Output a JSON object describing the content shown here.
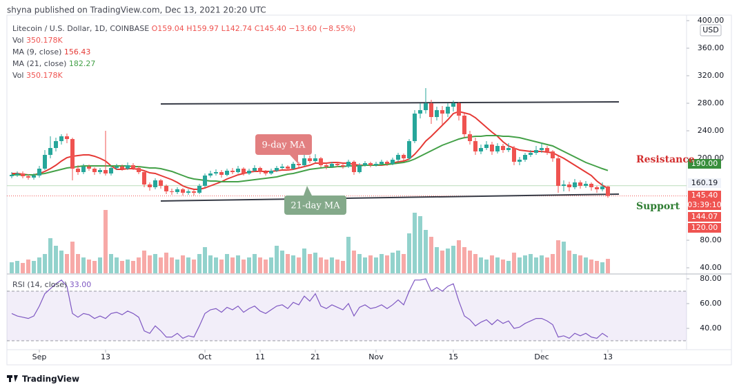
{
  "header": "shyna published on TradingView.com, Dec 13, 2021 20:20 UTC",
  "footer": "TradingView",
  "chart_data": {
    "type": "candlestick",
    "symbol": "Litecoin / U.S. Dollar, 1D, COINBASE",
    "ohlc_legend": [
      "O159.04",
      "H159.97",
      "L142.74",
      "C145.40",
      "−13.60 (−8.55%)"
    ],
    "vol_name": "Vol",
    "vol_value": "350.178K",
    "currency": "USD",
    "up_color": "#26a69a",
    "down_color": "#ef5350",
    "ylim": [
      32,
      408
    ],
    "yticks": [
      {
        "value": 400,
        "label": "400.00"
      },
      {
        "value": 360,
        "label": "360.00"
      },
      {
        "value": 320,
        "label": "320.00"
      },
      {
        "value": 280,
        "label": "280.00"
      },
      {
        "value": 240,
        "label": "240.00"
      },
      {
        "value": 200,
        "label": "200.00"
      }
    ],
    "volume_ylim": [
      32,
      120
    ],
    "volume_yticks": [
      {
        "value": 80,
        "label": "80.00"
      },
      {
        "value": 40,
        "label": "40.00"
      }
    ],
    "categories": [
      null,
      null,
      null,
      null,
      null,
      "Sep",
      null,
      null,
      null,
      null,
      null,
      null,
      null,
      null,
      null,
      null,
      null,
      "13",
      null,
      null,
      null,
      null,
      null,
      null,
      null,
      null,
      null,
      null,
      null,
      null,
      null,
      null,
      null,
      null,
      null,
      "Oct",
      null,
      null,
      null,
      null,
      null,
      null,
      null,
      null,
      null,
      "11",
      null,
      null,
      null,
      null,
      null,
      null,
      null,
      null,
      null,
      "21",
      null,
      null,
      null,
      null,
      null,
      null,
      null,
      null,
      null,
      null,
      "Nov",
      null,
      null,
      null,
      null,
      null,
      null,
      null,
      null,
      null,
      null,
      null,
      null,
      null,
      "15",
      null,
      null,
      null,
      null,
      null,
      null,
      null,
      null,
      null,
      null,
      null,
      null,
      null,
      null,
      null,
      "Dec",
      null,
      null,
      null,
      null,
      null,
      null,
      null,
      null,
      null,
      null,
      null,
      "13"
    ],
    "candles": [
      [
        174,
        180,
        171,
        176
      ],
      [
        176,
        181,
        173,
        178
      ],
      [
        178,
        181,
        171,
        174
      ],
      [
        174,
        177,
        169,
        172
      ],
      [
        172,
        178,
        169,
        175
      ],
      [
        175,
        189,
        172,
        185
      ],
      [
        185,
        212,
        183,
        205
      ],
      [
        205,
        232,
        200,
        215
      ],
      [
        215,
        230,
        210,
        225
      ],
      [
        225,
        235,
        220,
        232
      ],
      [
        232,
        236,
        222,
        228
      ],
      [
        228,
        230,
        168,
        185
      ],
      [
        185,
        190,
        176,
        180
      ],
      [
        180,
        192,
        177,
        188
      ],
      [
        188,
        191,
        182,
        185
      ],
      [
        185,
        187,
        176,
        180
      ],
      [
        180,
        186,
        177,
        183
      ],
      [
        183,
        240,
        175,
        178
      ],
      [
        178,
        189,
        175,
        186
      ],
      [
        186,
        192,
        183,
        188
      ],
      [
        188,
        191,
        182,
        185
      ],
      [
        185,
        194,
        183,
        190
      ],
      [
        190,
        193,
        183,
        186
      ],
      [
        186,
        189,
        177,
        180
      ],
      [
        180,
        182,
        158,
        162
      ],
      [
        162,
        165,
        153,
        158
      ],
      [
        158,
        171,
        155,
        168
      ],
      [
        168,
        170,
        156,
        160
      ],
      [
        160,
        162,
        148,
        152
      ],
      [
        152,
        156,
        147,
        151
      ],
      [
        151,
        158,
        148,
        155
      ],
      [
        155,
        157,
        146,
        150
      ],
      [
        150,
        155,
        147,
        152
      ],
      [
        152,
        154,
        146,
        150
      ],
      [
        150,
        163,
        148,
        160
      ],
      [
        160,
        178,
        158,
        175
      ],
      [
        175,
        182,
        172,
        178
      ],
      [
        178,
        184,
        175,
        180
      ],
      [
        180,
        183,
        172,
        176
      ],
      [
        176,
        185,
        174,
        182
      ],
      [
        182,
        186,
        177,
        180
      ],
      [
        180,
        189,
        178,
        185
      ],
      [
        185,
        187,
        175,
        178
      ],
      [
        178,
        185,
        176,
        182
      ],
      [
        182,
        190,
        180,
        186
      ],
      [
        186,
        188,
        177,
        180
      ],
      [
        180,
        183,
        175,
        178
      ],
      [
        178,
        185,
        176,
        182
      ],
      [
        182,
        189,
        180,
        186
      ],
      [
        186,
        192,
        184,
        188
      ],
      [
        188,
        190,
        182,
        185
      ],
      [
        185,
        195,
        183,
        192
      ],
      [
        192,
        195,
        187,
        190
      ],
      [
        190,
        212,
        188,
        200
      ],
      [
        200,
        204,
        193,
        196
      ],
      [
        196,
        206,
        194,
        200
      ],
      [
        200,
        202,
        187,
        190
      ],
      [
        190,
        193,
        184,
        188
      ],
      [
        188,
        195,
        186,
        192
      ],
      [
        192,
        194,
        187,
        190
      ],
      [
        190,
        193,
        185,
        188
      ],
      [
        188,
        198,
        186,
        195
      ],
      [
        195,
        197,
        176,
        180
      ],
      [
        180,
        193,
        178,
        190
      ],
      [
        190,
        196,
        188,
        193
      ],
      [
        193,
        195,
        187,
        190
      ],
      [
        190,
        195,
        188,
        192
      ],
      [
        192,
        198,
        190,
        195
      ],
      [
        195,
        197,
        189,
        192
      ],
      [
        192,
        201,
        190,
        198
      ],
      [
        198,
        208,
        195,
        205
      ],
      [
        205,
        207,
        197,
        200
      ],
      [
        200,
        228,
        198,
        225
      ],
      [
        225,
        270,
        222,
        265
      ],
      [
        265,
        280,
        258,
        270
      ],
      [
        270,
        302,
        265,
        280
      ],
      [
        280,
        285,
        250,
        260
      ],
      [
        260,
        275,
        255,
        270
      ],
      [
        270,
        276,
        248,
        265
      ],
      [
        265,
        280,
        260,
        275
      ],
      [
        275,
        284,
        268,
        280
      ],
      [
        280,
        282,
        255,
        262
      ],
      [
        262,
        265,
        230,
        235
      ],
      [
        235,
        240,
        220,
        225
      ],
      [
        225,
        230,
        205,
        210
      ],
      [
        210,
        220,
        206,
        215
      ],
      [
        215,
        225,
        212,
        220
      ],
      [
        220,
        224,
        205,
        210
      ],
      [
        210,
        222,
        207,
        218
      ],
      [
        218,
        221,
        208,
        212
      ],
      [
        212,
        222,
        209,
        215
      ],
      [
        215,
        218,
        190,
        195
      ],
      [
        195,
        202,
        190,
        198
      ],
      [
        198,
        208,
        195,
        205
      ],
      [
        205,
        212,
        202,
        208
      ],
      [
        208,
        218,
        205,
        212
      ],
      [
        212,
        222,
        208,
        215
      ],
      [
        215,
        218,
        205,
        210
      ],
      [
        210,
        212,
        195,
        200
      ],
      [
        200,
        203,
        150,
        160
      ],
      [
        160,
        168,
        152,
        162
      ],
      [
        162,
        166,
        152,
        158
      ],
      [
        158,
        170,
        155,
        165
      ],
      [
        165,
        168,
        156,
        160
      ],
      [
        160,
        167,
        157,
        163
      ],
      [
        163,
        165,
        153,
        158
      ],
      [
        158,
        160,
        150,
        155
      ],
      [
        155,
        165,
        152,
        159.04
      ],
      [
        159.04,
        159.97,
        142.74,
        145.4
      ]
    ],
    "volume": [
      48,
      50,
      47,
      52,
      50,
      55,
      60,
      83,
      72,
      65,
      60,
      78,
      60,
      55,
      52,
      50,
      55,
      124,
      60,
      55,
      50,
      52,
      50,
      55,
      65,
      58,
      60,
      55,
      62,
      55,
      52,
      58,
      55,
      52,
      60,
      70,
      58,
      55,
      52,
      60,
      55,
      58,
      52,
      55,
      60,
      55,
      52,
      55,
      72,
      65,
      60,
      58,
      55,
      68,
      60,
      62,
      55,
      52,
      55,
      52,
      50,
      85,
      65,
      60,
      55,
      58,
      55,
      60,
      58,
      62,
      65,
      60,
      90,
      120,
      115,
      95,
      85,
      70,
      65,
      68,
      72,
      80,
      70,
      65,
      60,
      55,
      52,
      58,
      55,
      52,
      50,
      62,
      55,
      58,
      60,
      55,
      58,
      55,
      60,
      80,
      78,
      65,
      60,
      58,
      55,
      52,
      50,
      48,
      53
    ],
    "ma_lines": [
      {
        "name": "MA (9, close)",
        "color": "#e53935",
        "values": [
          178,
          178,
          177,
          176,
          176,
          178,
          181,
          185,
          190,
          196,
          201,
          203,
          204,
          205,
          205,
          203,
          200,
          196,
          189,
          184,
          184,
          185,
          185,
          184,
          182,
          179,
          178,
          175,
          172,
          169,
          165,
          160,
          157,
          155,
          155,
          157,
          160,
          163,
          166,
          170,
          173,
          176,
          178,
          180,
          181,
          181,
          181,
          181,
          182,
          183,
          183,
          184,
          186,
          188,
          190,
          193,
          193,
          193,
          194,
          194,
          193,
          193,
          191,
          190,
          190,
          190,
          190,
          190,
          191,
          193,
          195,
          196,
          199,
          206,
          215,
          225,
          232,
          240,
          248,
          256,
          265,
          268,
          266,
          264,
          259,
          252,
          245,
          238,
          232,
          224,
          218,
          215,
          212,
          211,
          210,
          210,
          210,
          209,
          208,
          204,
          200,
          195,
          190,
          185,
          180,
          175,
          167,
          161,
          156.43
        ]
      },
      {
        "name": "MA (21, close)",
        "color": "#43a047",
        "values": [
          176,
          176,
          176,
          176,
          176,
          177,
          178,
          180,
          182,
          184,
          186,
          187,
          188,
          189,
          189,
          189,
          189,
          189,
          189,
          189,
          189,
          189,
          188,
          188,
          187,
          186,
          186,
          185,
          183,
          181,
          178,
          175,
          172,
          170,
          169,
          168,
          167,
          167,
          166,
          166,
          166,
          166,
          167,
          168,
          169,
          170,
          171,
          172,
          173,
          175,
          177,
          178,
          180,
          182,
          184,
          185,
          186,
          187,
          187,
          188,
          188,
          189,
          189,
          189,
          190,
          190,
          190,
          191,
          191,
          192,
          193,
          194,
          196,
          199,
          203,
          207,
          211,
          215,
          219,
          222,
          225,
          228,
          230,
          231,
          232,
          232,
          233,
          233,
          233,
          232,
          232,
          231,
          230,
          228,
          226,
          224,
          222,
          220,
          218,
          214,
          210,
          206,
          202,
          198,
          194,
          191,
          188,
          185,
          182.27
        ]
      }
    ],
    "trendlines": [
      {
        "x": [
          27,
          110
        ],
        "values": [
          279,
          282
        ],
        "color": "#363a45"
      },
      {
        "x": [
          27,
          110
        ],
        "values": [
          138,
          148
        ],
        "color": "#363a45"
      }
    ],
    "price_lines": [
      {
        "value": 160.19,
        "color": "#b9dcb9",
        "dash": false
      },
      {
        "value": 145.4,
        "color": "#ef5350",
        "dash": true
      }
    ],
    "tags": [
      {
        "label": "190.00",
        "color": "#388e3c",
        "text_color": "#ffffff"
      },
      {
        "label": "160.19",
        "color": "#f0f3fa",
        "text_color": "#131722"
      },
      {
        "label": "145.40",
        "color": "#ef5350",
        "text_color": "#ffffff"
      },
      {
        "label": "03:39:10",
        "color": "#ef5350",
        "text_color": "#ffffff"
      },
      {
        "label": "144.07",
        "color": "#ef5350",
        "text_color": "#ffffff"
      },
      {
        "label": "120.00",
        "color": "#ef5350",
        "text_color": "#ffffff"
      }
    ],
    "annotations": {
      "ma9": "9-day MA",
      "ma21": "21-day MA",
      "resistance": "Resistance",
      "support": "Support"
    },
    "rsi": {
      "name": "RSI (14, close)",
      "value_label": "33.00",
      "color": "#7e57c2",
      "ylim": [
        22.8,
        83.9
      ],
      "band": [
        30,
        70
      ],
      "yticks": [
        {
          "value": 80,
          "label": "80.00"
        },
        {
          "value": 60,
          "label": "60.00"
        },
        {
          "value": 40,
          "label": "40.00"
        }
      ],
      "values": [
        52,
        50,
        49,
        48,
        50,
        58,
        68,
        72,
        76,
        79,
        74,
        52,
        49,
        52,
        51,
        48,
        50,
        48,
        52,
        53,
        51,
        54,
        52,
        49,
        38,
        36,
        42,
        38,
        33,
        33,
        36,
        32,
        34,
        33,
        42,
        52,
        55,
        56,
        53,
        57,
        55,
        58,
        53,
        56,
        58,
        54,
        52,
        55,
        58,
        59,
        56,
        61,
        59,
        66,
        62,
        68,
        58,
        56,
        59,
        57,
        55,
        60,
        50,
        57,
        59,
        56,
        57,
        59,
        56,
        59,
        63,
        59,
        70,
        79,
        79,
        80,
        70,
        73,
        70,
        74,
        76,
        62,
        50,
        47,
        42,
        45,
        47,
        43,
        47,
        44,
        46,
        40,
        41,
        44,
        46,
        48,
        48,
        46,
        43,
        33,
        34,
        32,
        36,
        34,
        36,
        33,
        32,
        36,
        33
      ]
    }
  }
}
